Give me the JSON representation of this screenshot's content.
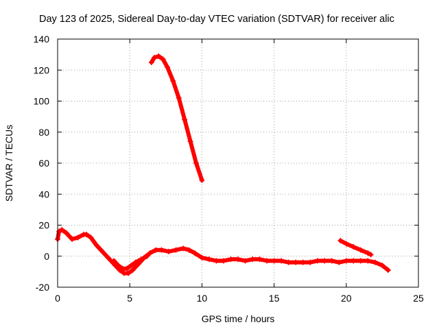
{
  "chart_data": {
    "type": "scatter",
    "title": "Day 123 of 2025, Sidereal Day-to-day VTEC variation (SDTVAR) for receiver alic",
    "xlabel": "GPS time / hours",
    "ylabel": "SDTVAR / TECUs",
    "xlim": [
      0,
      25
    ],
    "ylim": [
      -20,
      140
    ],
    "xticks": [
      0,
      5,
      10,
      15,
      20,
      25
    ],
    "yticks": [
      -20,
      0,
      20,
      40,
      60,
      80,
      100,
      120,
      140
    ],
    "grid": true,
    "series": [
      {
        "name": "SDTVAR",
        "color": "#ff0000",
        "segments": [
          [
            [
              0.0,
              11
            ],
            [
              0.1,
              16
            ],
            [
              0.3,
              17
            ],
            [
              0.6,
              15
            ],
            [
              1.0,
              11
            ],
            [
              1.4,
              12
            ],
            [
              1.8,
              14
            ],
            [
              2.0,
              14
            ],
            [
              2.3,
              12
            ],
            [
              2.7,
              7
            ],
            [
              3.0,
              4
            ],
            [
              3.5,
              -1
            ],
            [
              4.0,
              -6
            ],
            [
              4.3,
              -9
            ],
            [
              4.6,
              -11
            ],
            [
              4.9,
              -11
            ],
            [
              5.2,
              -9
            ],
            [
              5.6,
              -5
            ],
            [
              6.0,
              -1
            ],
            [
              6.4,
              2
            ],
            [
              6.8,
              4
            ],
            [
              7.2,
              4
            ],
            [
              7.7,
              3
            ],
            [
              8.2,
              4
            ],
            [
              8.7,
              5
            ],
            [
              9.1,
              4
            ],
            [
              9.5,
              2
            ],
            [
              10.0,
              -1
            ],
            [
              10.5,
              -2
            ],
            [
              11.0,
              -3
            ],
            [
              11.5,
              -3
            ],
            [
              12.0,
              -2
            ],
            [
              12.5,
              -2
            ],
            [
              13.0,
              -3
            ],
            [
              13.5,
              -2
            ],
            [
              14.0,
              -2
            ],
            [
              14.5,
              -3
            ],
            [
              15.0,
              -3
            ],
            [
              15.5,
              -3
            ],
            [
              16.0,
              -4
            ],
            [
              16.5,
              -4
            ],
            [
              17.0,
              -4
            ],
            [
              17.5,
              -4
            ],
            [
              18.0,
              -3
            ],
            [
              18.5,
              -3
            ],
            [
              19.0,
              -3
            ],
            [
              19.5,
              -4
            ],
            [
              20.0,
              -3
            ],
            [
              20.5,
              -3
            ],
            [
              21.0,
              -3
            ],
            [
              21.5,
              -3
            ],
            [
              22.0,
              -4
            ],
            [
              22.5,
              -6
            ],
            [
              22.9,
              -9
            ]
          ],
          [
            [
              3.9,
              -3
            ],
            [
              4.2,
              -6
            ],
            [
              4.5,
              -8
            ],
            [
              4.8,
              -8
            ],
            [
              5.1,
              -6
            ],
            [
              5.4,
              -4
            ],
            [
              5.8,
              -2
            ],
            [
              6.2,
              0
            ]
          ],
          [
            [
              6.5,
              125
            ],
            [
              6.7,
              128
            ],
            [
              7.0,
              129
            ],
            [
              7.3,
              127
            ],
            [
              7.6,
              122
            ],
            [
              8.0,
              113
            ],
            [
              8.4,
              102
            ],
            [
              8.8,
              88
            ],
            [
              9.2,
              74
            ],
            [
              9.6,
              60
            ],
            [
              10.0,
              49
            ]
          ],
          [
            [
              19.6,
              10
            ],
            [
              20.0,
              8
            ],
            [
              20.5,
              6
            ],
            [
              21.0,
              4
            ],
            [
              21.5,
              2
            ],
            [
              21.7,
              1
            ]
          ]
        ]
      }
    ]
  }
}
